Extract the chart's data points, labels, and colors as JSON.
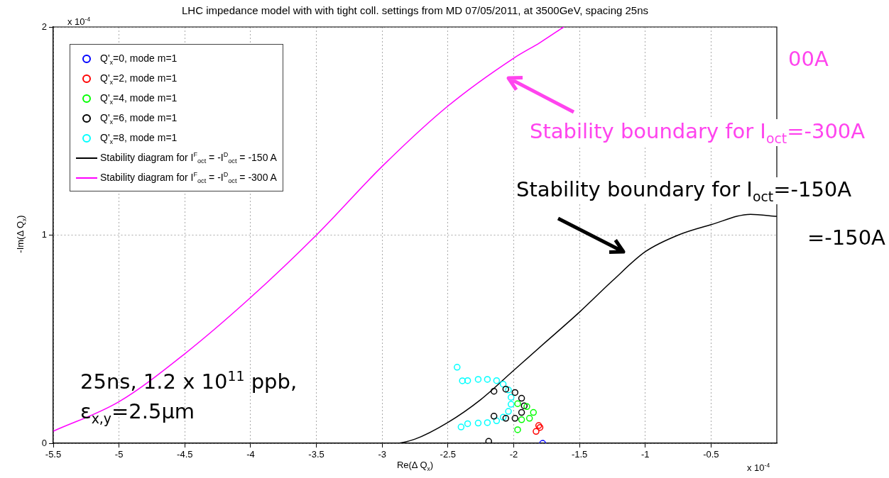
{
  "chart_data": {
    "type": "scatter",
    "title": "LHC impedance model with with tight coll. settings from MD 07/05/2011, at 3500GeV, spacing 25ns",
    "xlabel": "Re(Δ Q$_{x}$)",
    "ylabel": "-Im(Δ Q$_{x}$)",
    "xlim": [
      -5.5,
      0
    ],
    "xticks": [
      -5.5,
      -5,
      -4.5,
      -4,
      -3.5,
      -3,
      -2.5,
      -2,
      -1.5,
      -1,
      -0.5
    ],
    "ylim": [
      0,
      2
    ],
    "yticks": [
      0,
      1,
      2
    ],
    "grid": true,
    "legend": "top left",
    "series": [
      {
        "name": "Q'$_{x}$=0, mode m=1",
        "marker": "circle",
        "color": "#0000ff",
        "x": [
          -1.78
        ],
        "values": [
          0.0
        ]
      },
      {
        "name": "Q'$_{x}$=2, mode m=1",
        "marker": "circle",
        "color": "#ff0000",
        "x": [
          -1.81,
          -1.8,
          -1.83
        ],
        "values": [
          0.085,
          0.076,
          0.057
        ]
      },
      {
        "name": "Q'$_{x}$=4, mode m=1",
        "marker": "circle",
        "color": "#00ff00",
        "x": [
          -1.97,
          -1.9,
          -1.85,
          -1.88,
          -1.94,
          -1.97
        ],
        "values": [
          0.19,
          0.176,
          0.148,
          0.12,
          0.113,
          0.065
        ]
      },
      {
        "name": "Q'$_{x}$=6, mode m=1",
        "marker": "circle",
        "color": "#000000",
        "x": [
          -2.15,
          -2.06,
          -1.99,
          -1.94,
          -1.92,
          -1.94,
          -1.99,
          -2.06,
          -2.15,
          -2.19
        ],
        "values": [
          0.25,
          0.26,
          0.244,
          0.216,
          0.18,
          0.148,
          0.12,
          0.12,
          0.13,
          0.009
        ]
      },
      {
        "name": "Q'$_{x}$=8, mode m=1",
        "marker": "circle",
        "color": "#00ffff",
        "x": [
          -2.43,
          -2.39,
          -2.35,
          -2.27,
          -2.2,
          -2.13,
          -2.08,
          -2.04,
          -2.02,
          -2.02,
          -2.04,
          -2.08,
          -2.13,
          -2.2,
          -2.27,
          -2.35,
          -2.4
        ],
        "values": [
          0.365,
          0.3,
          0.301,
          0.307,
          0.307,
          0.301,
          0.284,
          0.256,
          0.221,
          0.187,
          0.153,
          0.125,
          0.108,
          0.099,
          0.097,
          0.094,
          0.078
        ]
      },
      {
        "name": "Stability diagram for I$^{F}$$_{oct}$ = -I$^{D}$$_{oct}$ = -150 A",
        "type": "line",
        "marker": "none",
        "line_style": "solid",
        "color": "#000000",
        "x": [
          -5.5,
          -2.9,
          -2.75,
          -2.5,
          -2.25,
          -2,
          -1.75,
          -1.5,
          -1.25,
          -1,
          -0.75,
          -0.5,
          -0.2,
          0
        ],
        "values": [
          0,
          0,
          0.02,
          0.1,
          0.21,
          0.35,
          0.49,
          0.63,
          0.78,
          0.92,
          1.0,
          1.05,
          1.1,
          1.09
        ]
      },
      {
        "name": "Stability diagram for I$^{F}$$_{oct}$ = -I$^{D}$$_{oct}$ = -300 A",
        "type": "line",
        "marker": "none",
        "line_style": "solid",
        "color": "#ff00ff",
        "x": [
          -5.5,
          -5,
          -4.5,
          -4,
          -3.5,
          -3,
          -2.5,
          -2,
          -1.8,
          -1.62
        ],
        "values": [
          0.058,
          0.2,
          0.43,
          0.7,
          1.0,
          1.33,
          1.62,
          1.85,
          1.925,
          2.0
        ]
      }
    ],
    "annotations": [
      "x 10$^{-4}$",
      "x 10$^{-4}$",
      "00A",
      "Stability boundary for I$_{oct}$=-300A",
      "Stability boundary for I$_{oct}$=-150A",
      "=-150A",
      "25ns, 1.2 x 10$^{11}$ ppb,",
      "ε$_{x,y}$=2.5μm"
    ]
  }
}
